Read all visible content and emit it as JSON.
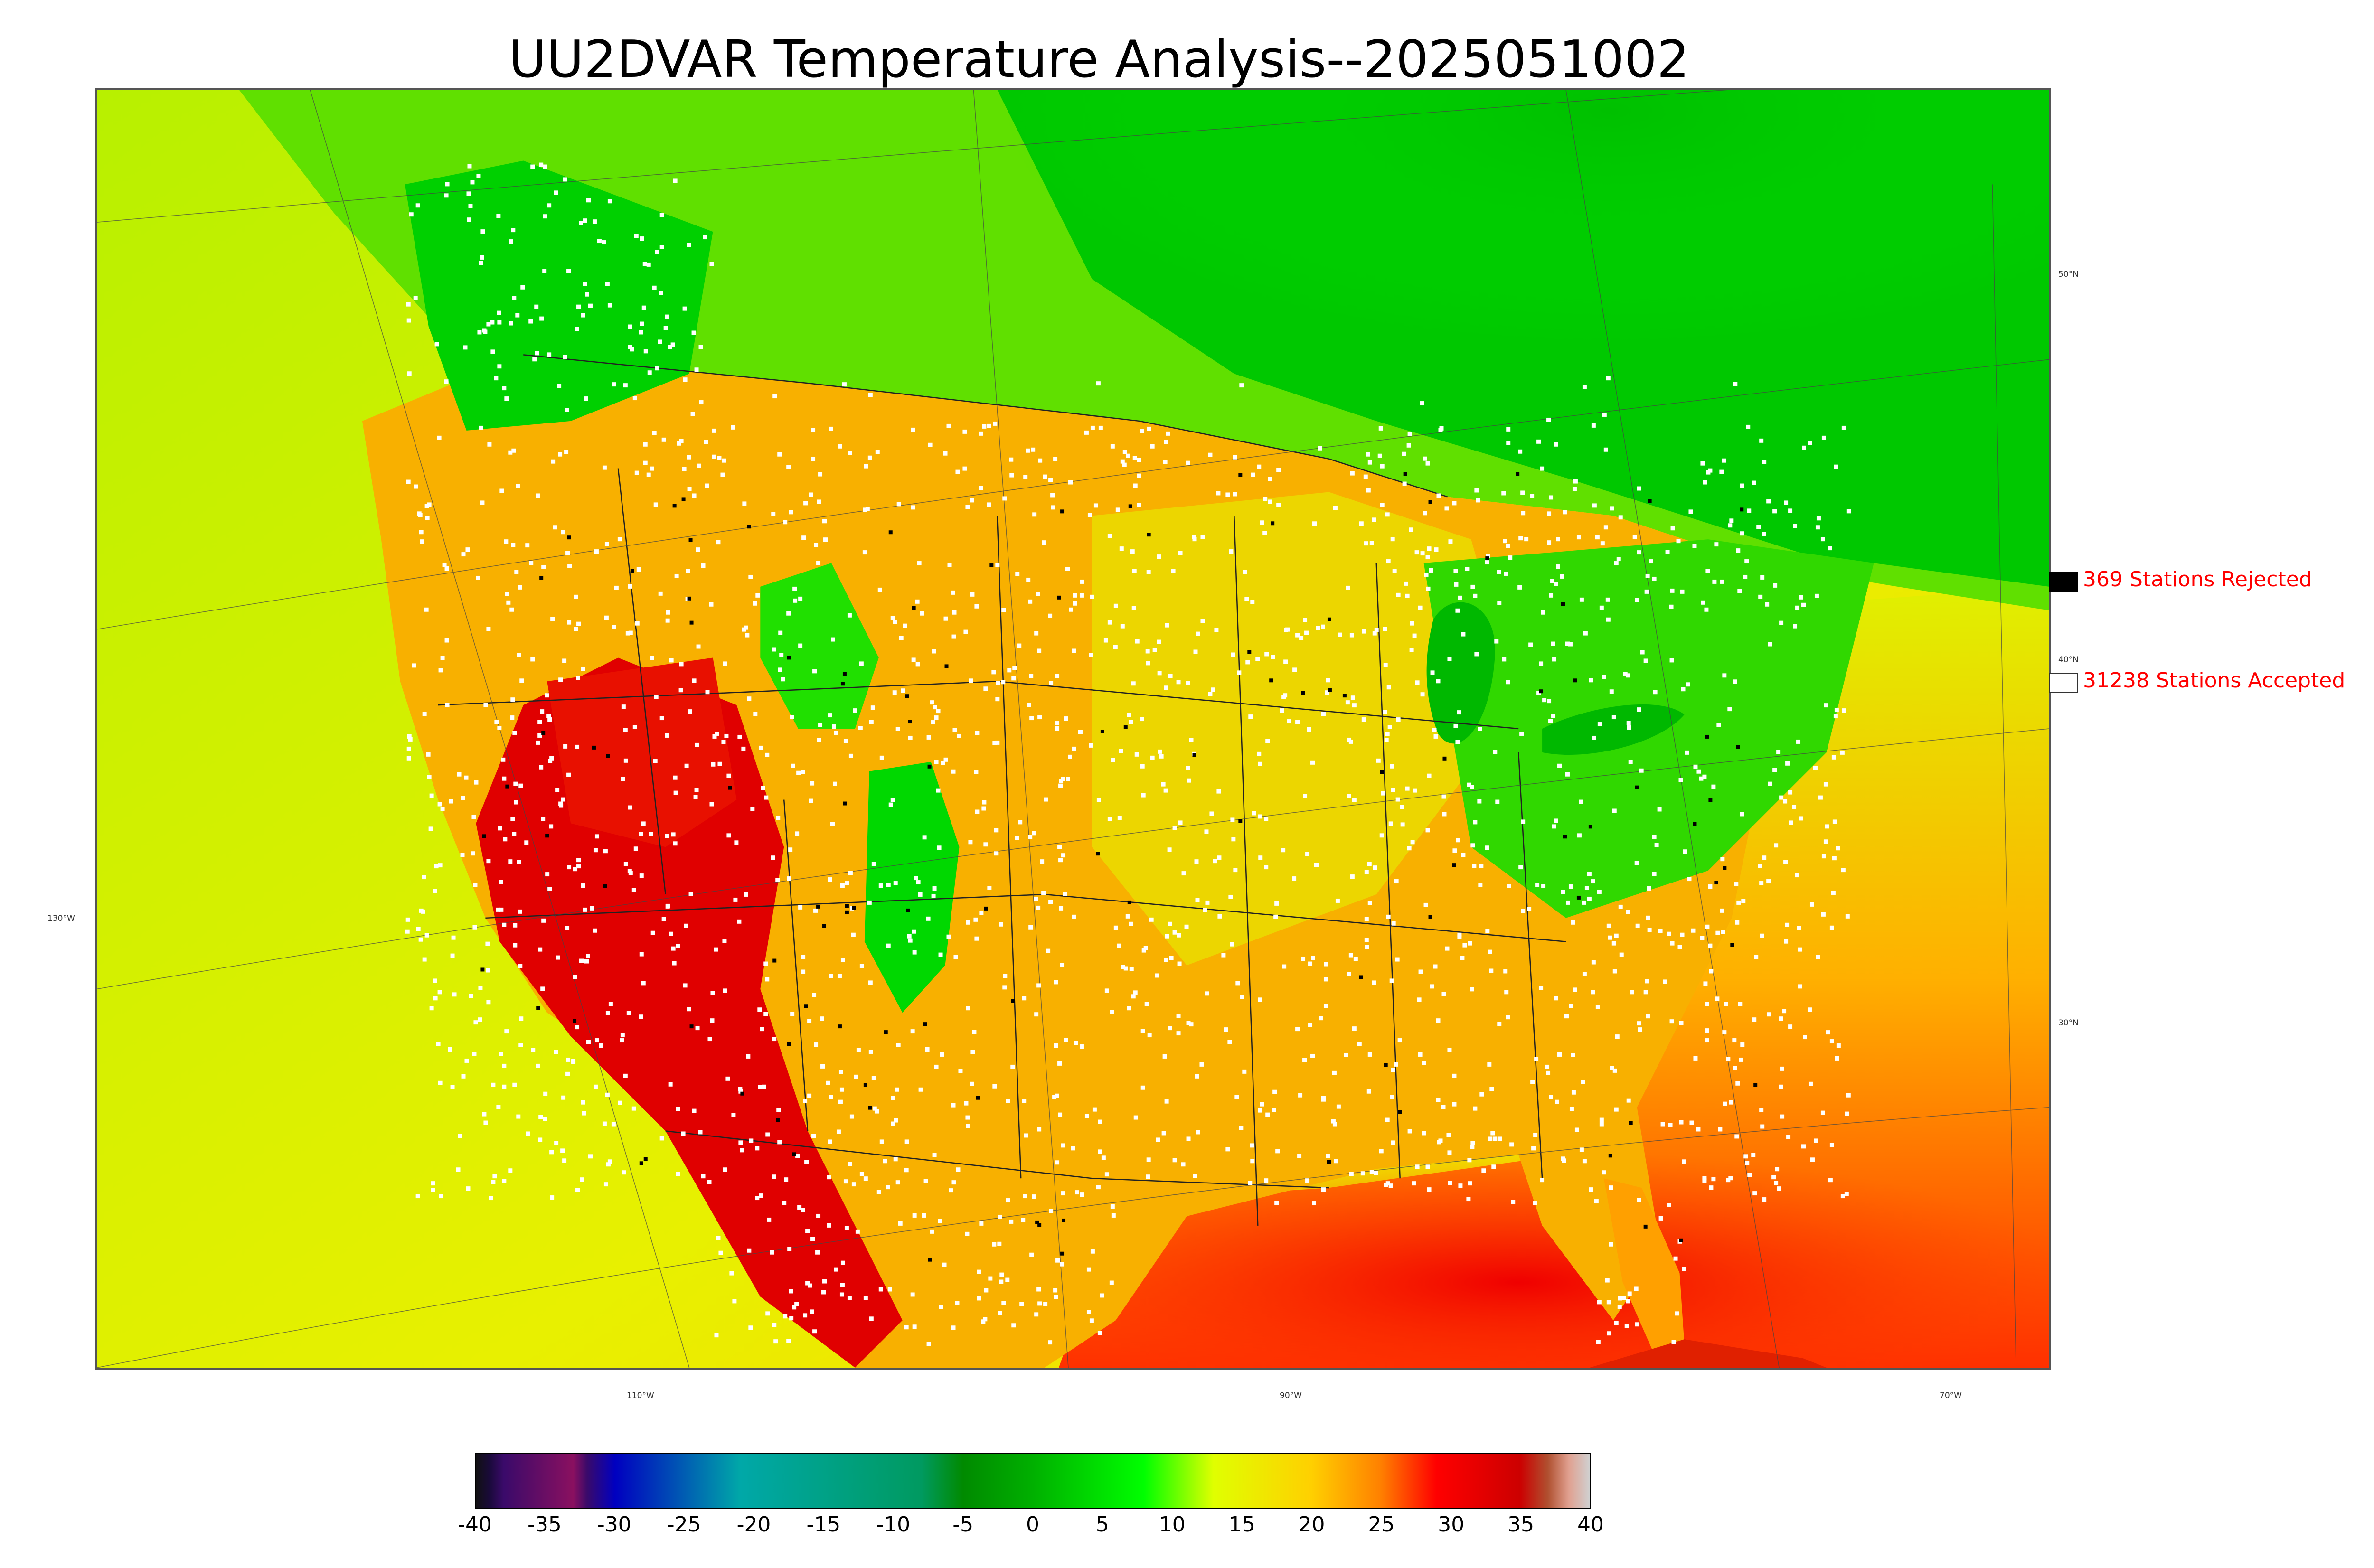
{
  "title": "UU2DVAR Temperature Analysis--2025051002",
  "colors": {
    "land_warm": "#f7a300",
    "land_hot": "#e60000",
    "land_cool": "#00dd00",
    "ocean_mild": "#d8f000",
    "rejected_marker": "#000000",
    "accepted_marker": "#ffffff",
    "legend_text": "#ff0000"
  },
  "graticule_labels": {
    "latitude": [
      "50°N",
      "40°N",
      "30°N"
    ],
    "longitude_left": "130°W",
    "longitude_bottom": [
      "110°W",
      "90°W",
      "70°W"
    ]
  },
  "legend": {
    "rejected_label": "369 Stations Rejected",
    "accepted_label": "31238 Stations Accepted",
    "rejected_count": 369,
    "accepted_count": 31238
  },
  "colorbar": {
    "ticks": [
      "-40",
      "-35",
      "-30",
      "-25",
      "-20",
      "-15",
      "-10",
      "-5",
      "0",
      "5",
      "10",
      "15",
      "20",
      "25",
      "30",
      "35",
      "40"
    ],
    "min": -40,
    "max": 40,
    "stops": [
      {
        "value": -40,
        "color": "#111111"
      },
      {
        "value": -39,
        "color": "#1a0a3a"
      },
      {
        "value": -38,
        "color": "#3a0a6a"
      },
      {
        "value": -33,
        "color": "#8a1060"
      },
      {
        "value": -32,
        "color": "#3a0a6a"
      },
      {
        "value": -30,
        "color": "#0000c0"
      },
      {
        "value": -21,
        "color": "#00a8a8"
      },
      {
        "value": -8,
        "color": "#009a60"
      },
      {
        "value": -5,
        "color": "#008a00"
      },
      {
        "value": 0,
        "color": "#00b000"
      },
      {
        "value": 8,
        "color": "#00ff00"
      },
      {
        "value": 13,
        "color": "#e0ff00"
      },
      {
        "value": 20,
        "color": "#ffd000"
      },
      {
        "value": 25,
        "color": "#ff8000"
      },
      {
        "value": 29,
        "color": "#ff0000"
      },
      {
        "value": 35,
        "color": "#cc0000"
      },
      {
        "value": 37,
        "color": "#b05030"
      },
      {
        "value": 38.5,
        "color": "#e0a090"
      },
      {
        "value": 40,
        "color": "#d0d0d0"
      }
    ]
  }
}
